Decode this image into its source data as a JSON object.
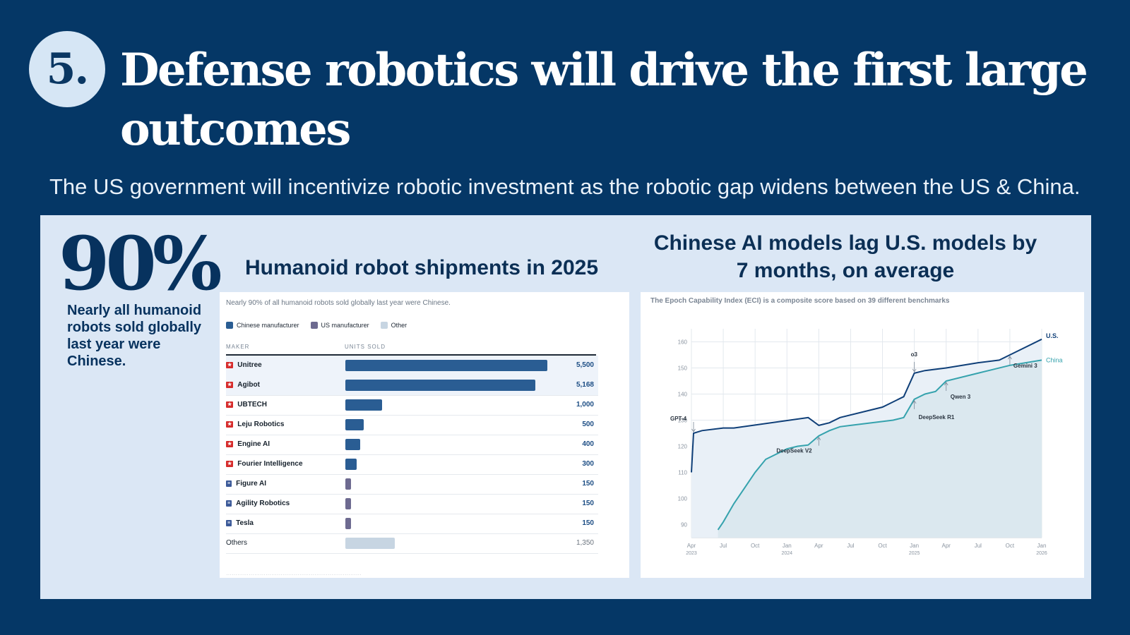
{
  "slide": {
    "number": "5.",
    "title": "Defense robotics will drive the first large outcomes",
    "subtitle": "The US government will incentivize robotic investment as the robotic gap widens between the US & China."
  },
  "stat": {
    "value": "90%",
    "caption": "Nearly all humanoid robots sold globally last year were Chinese."
  },
  "colors": {
    "background": "#053766",
    "panel": "#dbe7f5",
    "chinese": "#2a5d93",
    "us": "#6d6a90",
    "other": "#c7d5e2",
    "us_line": "#0f3f78",
    "china_line": "#35a2ad"
  },
  "shipments": {
    "heading": "Humanoid robot shipments in 2025",
    "note": "Nearly 90% of all humanoid robots sold globally last year were Chinese.",
    "legend": [
      "Chinese manufacturer",
      "US manufacturer",
      "Other"
    ],
    "columns": [
      "MAKER",
      "UNITS SOLD"
    ],
    "rows": [
      {
        "maker": "Unitree",
        "units": 5500,
        "label": "5,500",
        "origin": "CN"
      },
      {
        "maker": "Agibot",
        "units": 5168,
        "label": "5,168",
        "origin": "CN"
      },
      {
        "maker": "UBTECH",
        "units": 1000,
        "label": "1,000",
        "origin": "CN"
      },
      {
        "maker": "Leju Robotics",
        "units": 500,
        "label": "500",
        "origin": "CN"
      },
      {
        "maker": "Engine AI",
        "units": 400,
        "label": "400",
        "origin": "CN"
      },
      {
        "maker": "Fourier Intelligence",
        "units": 300,
        "label": "300",
        "origin": "CN"
      },
      {
        "maker": "Figure AI",
        "units": 150,
        "label": "150",
        "origin": "US"
      },
      {
        "maker": "Agility Robotics",
        "units": 150,
        "label": "150",
        "origin": "US"
      },
      {
        "maker": "Tesla",
        "units": 150,
        "label": "150",
        "origin": "US"
      },
      {
        "maker": "Others",
        "units": 1350,
        "label": "1,350",
        "origin": "OTHER"
      }
    ]
  },
  "chart_data": {
    "type": "line",
    "title": "Chinese AI models lag U.S. models by 7 months, on average",
    "note": "The Epoch Capability Index (ECI) is a composite score based on 39 different benchmarks",
    "xlim": [
      0,
      33
    ],
    "ylim": [
      85,
      165
    ],
    "yticks": [
      90,
      100,
      110,
      120,
      130,
      140,
      150,
      160
    ],
    "xticks": [
      {
        "m": 0,
        "label": "Apr",
        "year": "2023"
      },
      {
        "m": 3,
        "label": "Jul",
        "year": ""
      },
      {
        "m": 6,
        "label": "Oct",
        "year": ""
      },
      {
        "m": 9,
        "label": "Jan",
        "year": "2024"
      },
      {
        "m": 12,
        "label": "Apr",
        "year": ""
      },
      {
        "m": 15,
        "label": "Jul",
        "year": ""
      },
      {
        "m": 18,
        "label": "Oct",
        "year": ""
      },
      {
        "m": 21,
        "label": "Jan",
        "year": "2025"
      },
      {
        "m": 24,
        "label": "Apr",
        "year": ""
      },
      {
        "m": 27,
        "label": "Jul",
        "year": ""
      },
      {
        "m": 30,
        "label": "Oct",
        "year": ""
      },
      {
        "m": 33,
        "label": "Jan",
        "year": "2026"
      }
    ],
    "series": [
      {
        "name": "U.S.",
        "x": [
          0,
          0.2,
          1,
          3,
          4,
          11,
          12,
          13,
          14,
          18,
          20,
          21,
          22,
          24,
          27,
          29,
          30,
          31,
          33
        ],
        "y": [
          110,
          125,
          126,
          127,
          127,
          131,
          128,
          129,
          131,
          135,
          139,
          148,
          149,
          150,
          152,
          153,
          155,
          157,
          161
        ]
      },
      {
        "name": "China",
        "x": [
          2.5,
          3,
          4,
          5,
          6,
          7,
          8,
          9,
          10,
          11,
          12,
          13,
          14,
          15,
          19,
          20,
          21,
          22,
          23,
          24,
          27,
          30,
          33
        ],
        "y": [
          88,
          91,
          98,
          104,
          110,
          115,
          117,
          119,
          120,
          120.5,
          124,
          126,
          127.5,
          128,
          130,
          131,
          138,
          140,
          141,
          145,
          148,
          151,
          153
        ]
      }
    ],
    "annotations": [
      {
        "text": "GPT-4",
        "x": 0.2,
        "y": 125
      },
      {
        "text": "DeepSeek V2",
        "x": 12,
        "y": 124
      },
      {
        "text": "o3",
        "x": 21,
        "y": 148
      },
      {
        "text": "DeepSeek R1",
        "x": 21,
        "y": 138
      },
      {
        "text": "Qwen 3",
        "x": 24,
        "y": 145
      },
      {
        "text": "Gemini 3",
        "x": 30,
        "y": 155
      }
    ]
  }
}
